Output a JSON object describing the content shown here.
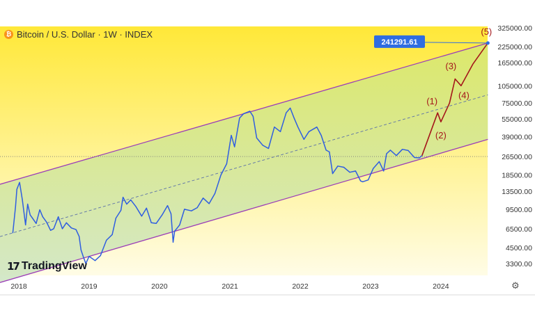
{
  "header": {
    "title": "Bitcoin / U.S. Dollar · 1W · INDEX",
    "coin_icon": "bitcoin-icon",
    "coin_symbol": "₿"
  },
  "branding": {
    "logo_text": "TradingView",
    "logo_icon": "tradingview-icon",
    "logo_glyph": "17"
  },
  "settings_icon": {
    "name": "gear-icon",
    "glyph": "⚙"
  },
  "colors": {
    "background_top": "#ffe838",
    "background_bottom": "#fffbe0",
    "price_line": "#2f5ee0",
    "channel": "#9b3db8",
    "projection": "#a4161a",
    "price_tag_bg": "#2f6de1",
    "channel_fill": "#c9e4a6"
  },
  "chart_data": {
    "type": "line",
    "x_axis": {
      "tick_labels": [
        "2018",
        "2019",
        "2020",
        "2021",
        "2022",
        "2023",
        "2024"
      ]
    },
    "y_axis": {
      "scale": "log",
      "tick_labels": [
        "325000.00",
        "225000.00",
        "165000.00",
        "105000.00",
        "75000.00",
        "55000.00",
        "39000.00",
        "26500.00",
        "18500.00",
        "13500.00",
        "9500.00",
        "6500.00",
        "4500.00",
        "3300.00"
      ],
      "range": [
        2900,
        325000
      ]
    },
    "series": [
      {
        "x": [
          "2017-12-01",
          "2017-12-15",
          "2017-12-22",
          "2018-01-05",
          "2018-01-19",
          "2018-02-05",
          "2018-02-16",
          "2018-03-01",
          "2018-03-15",
          "2018-04-01",
          "2018-04-20",
          "2018-05-05",
          "2018-05-25",
          "2018-06-15",
          "2018-07-01",
          "2018-07-25",
          "2018-08-15",
          "2018-09-05",
          "2018-10-01",
          "2018-10-25",
          "2018-11-10",
          "2018-11-20",
          "2018-12-01",
          "2018-12-15",
          "2019-01-01",
          "2019-02-01",
          "2019-03-01",
          "2019-04-01",
          "2019-05-01",
          "2019-05-20",
          "2019-06-15",
          "2019-06-26",
          "2019-07-15",
          "2019-08-05",
          "2019-09-01",
          "2019-10-01",
          "2019-10-26",
          "2019-11-20",
          "2019-12-15",
          "2020-01-15",
          "2020-02-12",
          "2020-03-01",
          "2020-03-12",
          "2020-03-20",
          "2020-04-15",
          "2020-05-10",
          "2020-06-15",
          "2020-07-15",
          "2020-08-15",
          "2020-09-15",
          "2020-10-15",
          "2020-11-15",
          "2020-12-15",
          "2021-01-08",
          "2021-01-25",
          "2021-02-20",
          "2021-03-13",
          "2021-04-14",
          "2021-05-01",
          "2021-05-20",
          "2021-06-20",
          "2021-07-20",
          "2021-08-20",
          "2021-09-20",
          "2021-10-20",
          "2021-11-10",
          "2021-11-30",
          "2021-12-20",
          "2022-01-20",
          "2022-02-15",
          "2022-03-28",
          "2022-04-20",
          "2022-05-15",
          "2022-06-01",
          "2022-06-18",
          "2022-07-15",
          "2022-08-15",
          "2022-09-15",
          "2022-10-15",
          "2022-11-10",
          "2022-11-21",
          "2022-12-20",
          "2023-01-15",
          "2023-02-15",
          "2023-03-10",
          "2023-03-25",
          "2023-04-14",
          "2023-05-15",
          "2023-06-15",
          "2023-07-15",
          "2023-08-17",
          "2023-09-11",
          "2023-09-25"
        ],
        "y": [
          6000,
          10000,
          14000,
          16000,
          11500,
          7000,
          10500,
          8500,
          7900,
          7200,
          9400,
          8200,
          7400,
          6300,
          6500,
          8200,
          6500,
          7300,
          6600,
          6400,
          5600,
          4300,
          3800,
          3300,
          3800,
          3500,
          3850,
          5200,
          5800,
          8000,
          9300,
          12000,
          10500,
          11400,
          10000,
          8300,
          9700,
          7300,
          7200,
          8500,
          10200,
          8700,
          5000,
          6200,
          7000,
          9500,
          9200,
          9800,
          11800,
          10600,
          12900,
          18500,
          23000,
          40000,
          32000,
          56000,
          61000,
          64000,
          58000,
          38000,
          33000,
          31000,
          47000,
          43000,
          62000,
          68000,
          56000,
          47000,
          37000,
          43000,
          47000,
          40000,
          30000,
          29000,
          19000,
          22000,
          21500,
          19500,
          20000,
          16500,
          16200,
          16800,
          21000,
          24000,
          20000,
          28000,
          30000,
          27000,
          30500,
          29800,
          26000,
          25800,
          27000
        ]
      }
    ],
    "current_price_label": "241291.61",
    "channel": {
      "upper": {
        "x": [
          "2017-12-01",
          "2024-09-01"
        ],
        "y": [
          16600,
          241291.61
        ]
      },
      "lower": {
        "x": [
          "2018-05-01",
          "2024-09-01"
        ],
        "y": [
          2900,
          37000
        ]
      },
      "mid": {
        "x": [
          "2017-12-01",
          "2024-09-01"
        ],
        "y": [
          6000,
          88000
        ]
      }
    },
    "projection": {
      "x": [
        "2023-09-25",
        "2023-12-15",
        "2024-01-01",
        "2024-02-15",
        "2024-03-15",
        "2024-04-15",
        "2024-06-15",
        "2024-09-01"
      ],
      "y": [
        27000,
        62000,
        52000,
        75000,
        120000,
        105000,
        160000,
        241291.61
      ],
      "wave_labels": [
        "(1)",
        "(2)",
        "(3)",
        "(4)",
        "(5)"
      ],
      "wave_points": [
        {
          "label": "(1)",
          "x": "2023-12-15",
          "y": 62000
        },
        {
          "label": "(2)",
          "x": "2024-01-01",
          "y": 52000
        },
        {
          "label": "(3)",
          "x": "2024-03-15",
          "y": 120000
        },
        {
          "label": "(4)",
          "x": "2024-04-15",
          "y": 105000
        },
        {
          "label": "(5)",
          "x": "2024-09-01",
          "y": 241291.61
        }
      ]
    },
    "reference_line": {
      "y": 26500,
      "style": "dotted"
    }
  }
}
